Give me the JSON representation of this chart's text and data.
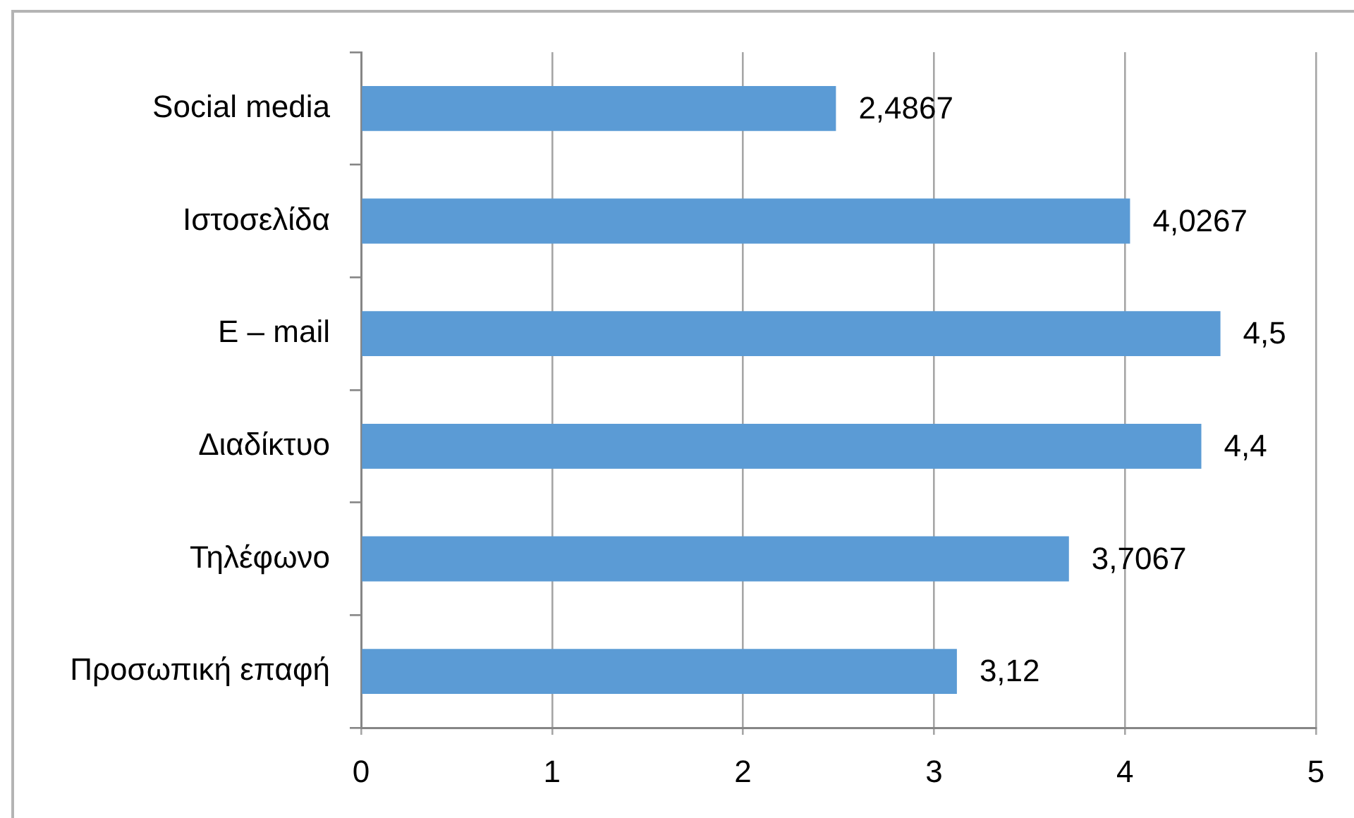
{
  "chart_data": {
    "type": "bar",
    "orientation": "horizontal",
    "categories": [
      "Social media",
      "Ιστοσελίδα",
      "E – mail",
      "Διαδίκτυο",
      "Τηλέφωνο",
      "Προσωπική επαφή"
    ],
    "values": [
      2.4867,
      4.0267,
      4.5,
      4.4,
      3.7067,
      3.12
    ],
    "value_labels": [
      "2,4867",
      "4,0267",
      "4,5",
      "4,4",
      "3,7067",
      "3,12"
    ],
    "color": "#5b9bd5",
    "xlim": [
      0,
      5
    ],
    "xticks": [
      0,
      1,
      2,
      3,
      4,
      5
    ],
    "grid": "x",
    "legend": false
  }
}
